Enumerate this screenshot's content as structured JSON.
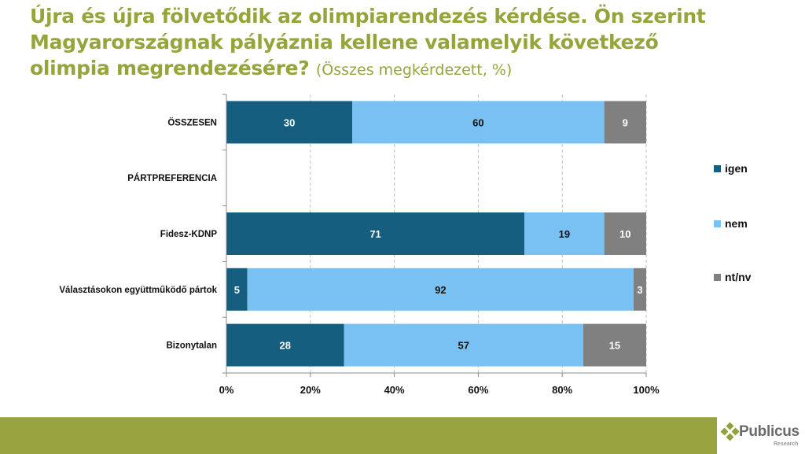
{
  "title": {
    "main": "Újra és újra fölvetődik az olimpiarendezés kérdése. Ön szerint Magyarországnak pályáznia kellene valamelyik következő olimpia megrendezésére?",
    "subtitle": "(Összes megkérdezett, %)"
  },
  "colors": {
    "igen": "#165E80",
    "nem": "#7AC1F3",
    "ntnv": "#808080",
    "title": "#95A53C",
    "footer": "#99A33F"
  },
  "chart_data": {
    "type": "bar",
    "orientation": "horizontal",
    "stacked": "percent",
    "title": "Újra és újra fölvetődik az olimpiarendezés kérdése. Ön szerint Magyarországnak pályáznia kellene valamelyik következő olimpia megrendezésére? (Összes megkérdezett, %)",
    "categories": [
      "ÖSSZESEN",
      "PÁRTPREFERENCIA",
      "Fidesz-KDNP",
      "Választásokon együttműködő pártok",
      "Bizonytalan"
    ],
    "series": [
      {
        "name": "igen",
        "values": [
          30,
          null,
          71,
          5,
          28
        ]
      },
      {
        "name": "nem",
        "values": [
          60,
          null,
          19,
          92,
          57
        ]
      },
      {
        "name": "nt/nv",
        "values": [
          9,
          null,
          10,
          3,
          15
        ]
      }
    ],
    "xlim": [
      0,
      100
    ],
    "xticks": [
      "0%",
      "20%",
      "40%",
      "60%",
      "80%",
      "100%"
    ],
    "grid": "vertical dashed",
    "legend": "right"
  },
  "logo": {
    "name": "Publicus",
    "sub": "Research"
  }
}
